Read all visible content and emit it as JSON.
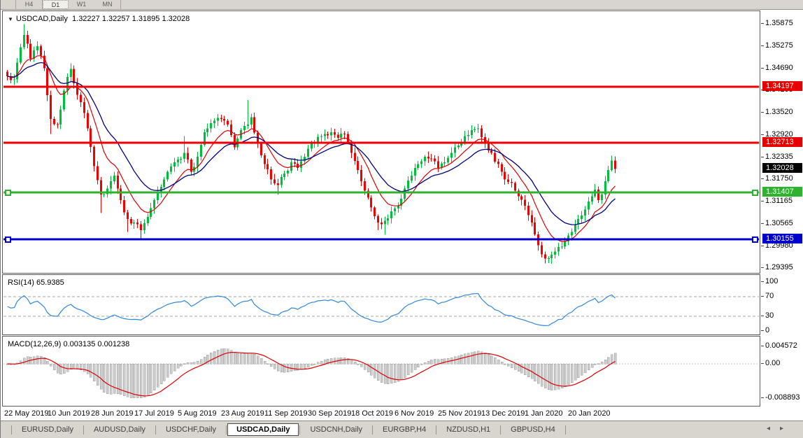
{
  "timeframe_bar": {
    "tabs": [
      "H4",
      "D1",
      "W1",
      "MN"
    ],
    "active": "D1"
  },
  "main_chart": {
    "collapse_icon": "▼",
    "symbol_title": "USDCAD,Daily",
    "quote_ohlc": "1.32227 1.32257 1.31895 1.32028",
    "price_axis_ticks": [
      "1.35875",
      "1.35275",
      "1.34690",
      "1.34105",
      "1.33520",
      "1.32920",
      "1.32335",
      "1.31750",
      "1.31165",
      "1.30565",
      "1.29980",
      "1.29395"
    ],
    "price_tags": [
      {
        "text": "1.34197",
        "color": "#e60000",
        "type": "resistance-line-tag"
      },
      {
        "text": "1.32713",
        "color": "#e60000",
        "type": "resistance-line-tag"
      },
      {
        "text": "1.32028",
        "color": "#000000",
        "type": "current-price-tag"
      },
      {
        "text": "1.31407",
        "color": "#2db32d",
        "type": "support-line-tag"
      },
      {
        "text": "1.30155",
        "color": "#0000cc",
        "type": "support-line-tag"
      }
    ]
  },
  "rsi_panel": {
    "label": "RSI(14) 65.9385",
    "axis_ticks": [
      "100",
      "70",
      "30",
      "0"
    ],
    "levels": [
      70,
      30
    ],
    "last_value": 65.9385
  },
  "macd_panel": {
    "label": "MACD(12,26,9) 0.003135 0.001238",
    "axis_ticks": [
      "0.004572",
      "0.00",
      "-0.008893"
    ],
    "last_values": [
      "0.003135",
      "0.001238"
    ]
  },
  "date_axis": [
    "22 May 2019",
    "10 Jun 2019",
    "28 Jun 2019",
    "17 Jul 2019",
    "5 Aug 2019",
    "23 Aug 2019",
    "11 Sep 2019",
    "30 Sep 2019",
    "18 Oct 2019",
    "6 Nov 2019",
    "25 Nov 2019",
    "13 Dec 2019",
    "1 Jan 2020",
    "20 Jan 2020"
  ],
  "symbol_tab_bar": {
    "tabs": [
      "EURUSD,Daily",
      "AUDUSD,Daily",
      "USDCHF,Daily",
      "USDCAD,Daily",
      "USDCNH,Daily",
      "EURGBP,H4",
      "NZDUSD,H1",
      "GBPUSD,H4"
    ],
    "active": "USDCAD,Daily",
    "scroll_left_icon": "◂",
    "scroll_right_icon": "▸"
  },
  "chart_data": {
    "type": "candlestick",
    "symbol": "USDCAD",
    "timeframe": "Daily",
    "title": "USDCAD,Daily 1.32227 1.32257 1.31895 1.32028",
    "num_candles": 183,
    "bars_per_x_label": 13,
    "x_labels": [
      "22 May 2019",
      "10 Jun 2019",
      "28 Jun 2019",
      "17 Jul 2019",
      "5 Aug 2019",
      "23 Aug 2019",
      "11 Sep 2019",
      "30 Sep 2019",
      "18 Oct 2019",
      "6 Nov 2019",
      "25 Nov 2019",
      "13 Dec 2019",
      "1 Jan 2020",
      "20 Jan 2020"
    ],
    "price_range": [
      1.29395,
      1.35875
    ],
    "anchors_format": "[bar_index, close, high_override, low_override]",
    "anchors": [
      [
        0,
        1.3448
      ],
      [
        2,
        1.344
      ],
      [
        4,
        1.3525
      ],
      [
        5,
        1.3558,
        1.3587
      ],
      [
        7,
        1.3495
      ],
      [
        9,
        1.3528
      ],
      [
        11,
        1.347
      ],
      [
        13,
        1.3335,
        null,
        1.3295
      ],
      [
        15,
        1.332
      ],
      [
        17,
        1.341
      ],
      [
        19,
        1.3468,
        1.3482
      ],
      [
        20,
        1.343
      ],
      [
        22,
        1.338
      ],
      [
        24,
        1.331
      ],
      [
        26,
        1.321
      ],
      [
        28,
        1.3135,
        null,
        1.3085
      ],
      [
        30,
        1.315
      ],
      [
        32,
        1.3185
      ],
      [
        34,
        1.312
      ],
      [
        36,
        1.307,
        null,
        1.3035
      ],
      [
        38,
        1.306
      ],
      [
        40,
        1.304,
        null,
        1.3016
      ],
      [
        42,
        1.3075
      ],
      [
        44,
        1.312
      ],
      [
        46,
        1.3155
      ],
      [
        48,
        1.3195
      ],
      [
        50,
        1.322
      ],
      [
        53,
        1.3245,
        1.329
      ],
      [
        55,
        1.3195
      ],
      [
        57,
        1.3235
      ],
      [
        59,
        1.33
      ],
      [
        62,
        1.333
      ],
      [
        64,
        1.3335
      ],
      [
        66,
        1.332
      ],
      [
        68,
        1.326
      ],
      [
        70,
        1.3305
      ],
      [
        72,
        1.332,
        1.3385
      ],
      [
        73,
        1.334
      ],
      [
        75,
        1.327
      ],
      [
        77,
        1.3215
      ],
      [
        79,
        1.3175
      ],
      [
        81,
        1.316,
        null,
        1.3135
      ],
      [
        83,
        1.319
      ],
      [
        85,
        1.322
      ],
      [
        87,
        1.3205
      ],
      [
        89,
        1.3235
      ],
      [
        91,
        1.327
      ],
      [
        94,
        1.329
      ],
      [
        97,
        1.33,
        1.3312
      ],
      [
        99,
        1.3285
      ],
      [
        101,
        1.3295
      ],
      [
        103,
        1.3245
      ],
      [
        105,
        1.32
      ],
      [
        107,
        1.3145
      ],
      [
        109,
        1.31
      ],
      [
        111,
        1.306,
        null,
        1.304
      ],
      [
        113,
        1.3065,
        null,
        1.3028
      ],
      [
        115,
        1.309
      ],
      [
        117,
        1.3105
      ],
      [
        119,
        1.315
      ],
      [
        121,
        1.3185
      ],
      [
        123,
        1.3215
      ],
      [
        125,
        1.3235
      ],
      [
        127,
        1.323
      ],
      [
        129,
        1.3205
      ],
      [
        131,
        1.322
      ],
      [
        133,
        1.3245
      ],
      [
        135,
        1.3265
      ],
      [
        137,
        1.329
      ],
      [
        139,
        1.3305
      ],
      [
        141,
        1.331,
        1.3322
      ],
      [
        143,
        1.327
      ],
      [
        145,
        1.3245
      ],
      [
        147,
        1.3215
      ],
      [
        149,
        1.3175
      ],
      [
        151,
        1.3165
      ],
      [
        153,
        1.313
      ],
      [
        155,
        1.3105
      ],
      [
        157,
        1.306
      ],
      [
        159,
        1.3
      ],
      [
        161,
        1.2965,
        null,
        1.2952
      ],
      [
        163,
        1.2975,
        null,
        1.2951
      ],
      [
        165,
        1.2995
      ],
      [
        167,
        1.301
      ],
      [
        169,
        1.3035
      ],
      [
        171,
        1.307
      ],
      [
        173,
        1.3095
      ],
      [
        175,
        1.313
      ],
      [
        176,
        1.3148
      ],
      [
        177,
        1.312
      ],
      [
        178,
        1.3135
      ],
      [
        179,
        1.317
      ],
      [
        180,
        1.32
      ],
      [
        181,
        1.3225,
        1.3237
      ],
      [
        182,
        1.32028
      ]
    ],
    "hlines": [
      {
        "price": 1.34197,
        "color": "#ee0000",
        "width": 3,
        "handles": false
      },
      {
        "price": 1.32713,
        "color": "#ee0000",
        "width": 3,
        "handles": false
      },
      {
        "price": 1.31407,
        "color": "#2db32d",
        "width": 3,
        "handles": true
      },
      {
        "price": 1.30155,
        "color": "#0000cc",
        "width": 3,
        "handles": true
      }
    ],
    "current_price": 1.32028,
    "moving_averages": [
      {
        "period": 10,
        "color": "#dd0000",
        "name": "ma-fast"
      },
      {
        "period": 21,
        "color": "#000080",
        "name": "ma-slow"
      }
    ],
    "rsi": {
      "period": 14,
      "levels": [
        70,
        30
      ],
      "range": [
        0,
        100
      ],
      "line_color": "#2f88dd"
    },
    "macd": {
      "fast": 12,
      "slow": 26,
      "signal": 9,
      "axis_range": [
        -0.008893,
        0.004572
      ],
      "hist_color": "#cdcdcd",
      "hist_border": "#9e9e9e",
      "signal_color": "#dd0000"
    },
    "colors": {
      "up": "#00bd3c",
      "down": "#f10000",
      "background": "#ffffff"
    }
  }
}
